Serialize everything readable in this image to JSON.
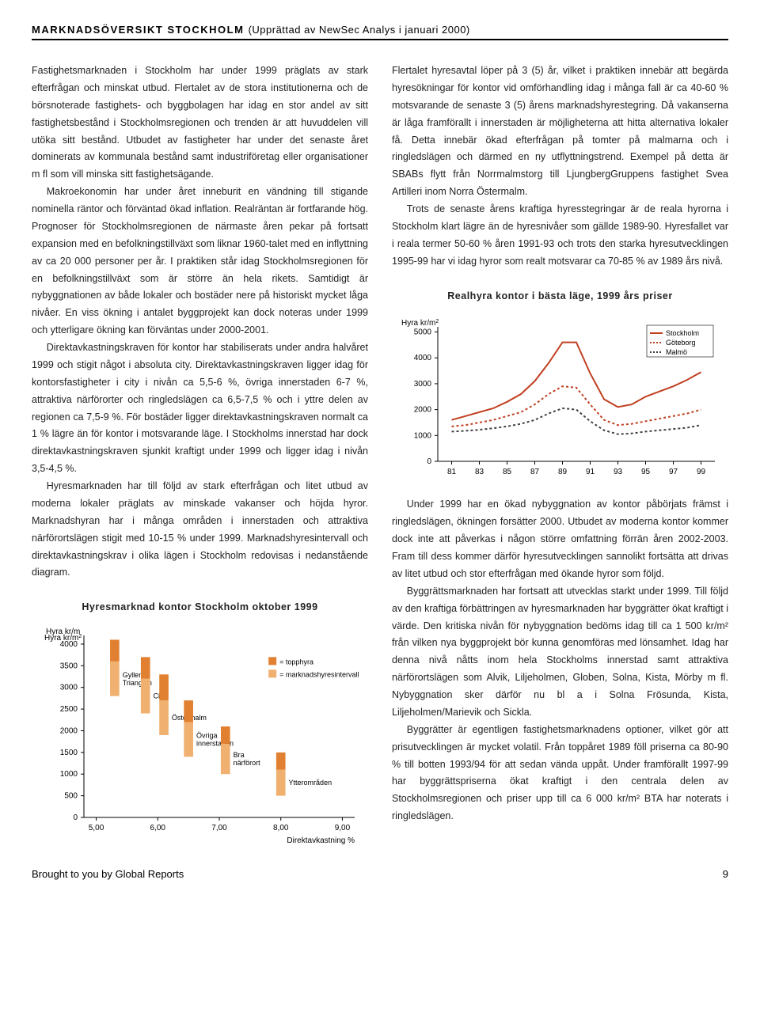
{
  "header": {
    "title": "MARKNADSÖVERSIKT STOCKHOLM",
    "subtitle": "(Upprättad av NewSec Analys i januari 2000)"
  },
  "left_paragraphs": [
    "Fastighetsmarknaden i Stockholm har under 1999 präglats av stark efterfrågan och minskat utbud. Flertalet av de stora institutionerna och de börsnoterade fastighets- och byggbolagen har idag en stor andel av sitt fastighetsbestånd i Stockholmsregionen och trenden är att huvuddelen vill utöka sitt bestånd. Utbudet av fastigheter har under det senaste året dominerats av kommunala bestånd samt industriföretag eller organisationer m fl som vill minska sitt fastighetsägande.",
    "Makroekonomin har under året inneburit en vändning till stigande nominella räntor och förväntad ökad inflation. Realräntan är fortfarande hög. Prognoser för Stockholmsregionen de närmaste åren pekar på fortsatt expansion med en befolkningstillväxt som liknar 1960-talet med en inflyttning av ca 20 000 personer per år. I praktiken står idag Stockholmsregionen för en befolkningstillväxt som är större än hela rikets. Samtidigt är nybyggnationen av både lokaler och bostäder nere på historiskt mycket låga nivåer. En viss ökning i antalet byggprojekt kan dock noteras under 1999 och ytterligare ökning kan förväntas under 2000-2001.",
    "Direktavkastningskraven för kontor har stabiliserats under andra halvåret 1999 och stigit något i absoluta city. Direktavkastningskraven ligger idag för kontorsfastigheter i city i nivån ca 5,5-6 %, övriga innerstaden 6-7 %, attraktiva närförorter och ringledslägen ca 6,5-7,5 % och i yttre delen av regionen ca 7,5-9 %. För bostäder ligger direktavkastningskraven normalt ca 1 % lägre än för kontor i motsvarande läge. I Stockholms innerstad har dock direktavkastningskraven sjunkit kraftigt under 1999 och ligger idag i nivån 3,5-4,5 %.",
    "Hyresmarknaden har till följd av stark efterfrågan och litet utbud av moderna lokaler präglats av minskade vakanser och höjda hyror. Marknadshyran har i många områden i innerstaden och attraktiva närförortslägen stigit med 10-15 % under 1999. Marknadshyresintervall och direktavkastningskrav i olika lägen i Stockholm redovisas i nedanstående diagram."
  ],
  "right_paragraphs_top": [
    "Flertalet hyresavtal löper på 3 (5) år, vilket i praktiken innebär att begärda hyresökningar för kontor vid omförhandling idag i många fall är ca 40-60 % motsvarande de senaste 3 (5) årens marknadshyrestegring. Då vakanserna är låga framförallt i innerstaden är möjligheterna att hitta alternativa lokaler få. Detta innebär ökad efterfrågan på tomter på malmarna och i ringledslägen och därmed en ny utflyttningstrend. Exempel på detta är SBABs flytt från Norrmalmstorg till LjungbergGruppens fastighet Svea Artilleri inom Norra Östermalm.",
    "Trots de senaste årens kraftiga hyresstegringar är de reala hyrorna i Stockholm klart lägre än de hyresnivåer som gällde 1989-90. Hyresfallet var i reala termer 50-60 % åren 1991-93 och trots den starka hyresutvecklingen 1995-99 har vi idag hyror som realt motsvarar ca 70-85 % av 1989 års nivå."
  ],
  "right_paragraphs_bottom": [
    "Under 1999 har en ökad nybyggnation av kontor påbörjats främst i ringledslägen, ökningen forsätter 2000. Utbudet av moderna kontor kommer dock inte att påverkas i någon större omfattning förrän åren 2002-2003. Fram till dess kommer därför hyresutvecklingen sannolikt fortsätta att drivas av litet utbud och stor efterfrågan med ökande hyror som följd.",
    "Byggrättsmarknaden har fortsatt att utvecklas starkt under 1999. Till följd av den kraftiga förbättringen av hyresmarknaden har byggrätter ökat kraftigt i värde. Den kritiska nivån för nybyggnation bedöms idag till ca 1 500 kr/m² från vilken nya byggprojekt bör kunna genomföras med lönsamhet. Idag har denna nivå nåtts inom hela Stockholms innerstad samt attraktiva närförortslägen som Alvik, Liljeholmen, Globen, Solna, Kista, Mörby m fl. Nybyggnation sker därför nu bl a i Solna Frösunda, Kista, Liljeholmen/Marievik och Sickla.",
    "Byggrätter är egentligen fastighetsmarknadens optioner, vilket gör att prisutvecklingen är mycket volatil. Från toppåret 1989 föll priserna ca 80-90 % till botten 1993/94 för att sedan vända uppåt. Under framförallt 1997-99 har byggrättspriserna ökat kraftigt i den centrala delen av Stockholmsregionen och priser upp till ca 6 000 kr/m² BTA har noterats i ringledslägen."
  ],
  "chart1": {
    "title": "Hyresmarknad kontor Stockholm oktober 1999",
    "ylabel": "Hyra kr/m²",
    "y_ticks": [
      0,
      500,
      1000,
      1500,
      2000,
      2500,
      3000,
      3500,
      4000
    ],
    "x_ticks": [
      "5,00",
      "6,00",
      "7,00",
      "8,00",
      "9,00"
    ],
    "xlabel": "Direktavkastning %",
    "legend": [
      {
        "color": "#e08030",
        "label": "= topphyra"
      },
      {
        "color": "#f0b070",
        "label": "= marknadshyresintervall"
      }
    ],
    "bar_labels": [
      "Gyllene Triangeln",
      "City",
      "Östermalm",
      "Övriga innerstaden",
      "Bra närförort",
      "Ytterområden"
    ],
    "bars": [
      {
        "x": 5.3,
        "low": 2800,
        "high": 3600,
        "top": 4100,
        "label": "Gyllene Triangeln"
      },
      {
        "x": 5.8,
        "low": 2400,
        "high": 3200,
        "top": 3700,
        "label": "City"
      },
      {
        "x": 6.1,
        "low": 1900,
        "high": 2700,
        "top": 3300,
        "label": "Östermalm"
      },
      {
        "x": 6.5,
        "low": 1400,
        "high": 2200,
        "top": 2700,
        "label": "Övriga innerstaden"
      },
      {
        "x": 7.1,
        "low": 1000,
        "high": 1700,
        "top": 2100,
        "label": "Bra närförort"
      },
      {
        "x": 8.0,
        "low": 500,
        "high": 1100,
        "top": 1500,
        "label": "Ytterområden"
      }
    ],
    "bar_width": 0.15,
    "colors": {
      "top": "#e08030",
      "range": "#f0b070",
      "axis": "#000"
    },
    "ylim": [
      0,
      4200
    ],
    "xlim": [
      4.8,
      9.2
    ]
  },
  "chart2": {
    "title": "Realhyra kontor i bästa läge, 1999 års priser",
    "ylabel": "Hyra kr/m²",
    "y_ticks": [
      0,
      1000,
      2000,
      3000,
      4000,
      5000
    ],
    "x_ticks": [
      81,
      83,
      85,
      87,
      89,
      91,
      93,
      95,
      97,
      99
    ],
    "ylim": [
      0,
      5200
    ],
    "xlim": [
      80,
      100
    ],
    "legend": [
      {
        "label": "Stockholm",
        "color": "#c04020",
        "style": "solid"
      },
      {
        "label": "Göteborg",
        "color": "#c04020",
        "style": "dotted"
      },
      {
        "label": "Malmö",
        "color": "#404040",
        "style": "dotted"
      }
    ],
    "series": [
      {
        "name": "Stockholm",
        "color": "#c04020",
        "style": "solid",
        "width": 2,
        "points": [
          [
            81,
            1600
          ],
          [
            82,
            1750
          ],
          [
            83,
            1900
          ],
          [
            84,
            2050
          ],
          [
            85,
            2300
          ],
          [
            86,
            2600
          ],
          [
            87,
            3100
          ],
          [
            88,
            3800
          ],
          [
            89,
            4600
          ],
          [
            90,
            4600
          ],
          [
            91,
            3400
          ],
          [
            92,
            2400
          ],
          [
            93,
            2100
          ],
          [
            94,
            2200
          ],
          [
            95,
            2500
          ],
          [
            96,
            2700
          ],
          [
            97,
            2900
          ],
          [
            98,
            3150
          ],
          [
            99,
            3450
          ]
        ]
      },
      {
        "name": "Göteborg",
        "color": "#c04020",
        "style": "dotted",
        "width": 2,
        "points": [
          [
            81,
            1350
          ],
          [
            82,
            1400
          ],
          [
            83,
            1500
          ],
          [
            84,
            1600
          ],
          [
            85,
            1750
          ],
          [
            86,
            1900
          ],
          [
            87,
            2200
          ],
          [
            88,
            2600
          ],
          [
            89,
            2900
          ],
          [
            90,
            2850
          ],
          [
            91,
            2200
          ],
          [
            92,
            1600
          ],
          [
            93,
            1400
          ],
          [
            94,
            1450
          ],
          [
            95,
            1550
          ],
          [
            96,
            1650
          ],
          [
            97,
            1750
          ],
          [
            98,
            1850
          ],
          [
            99,
            2000
          ]
        ]
      },
      {
        "name": "Malmö",
        "color": "#404040",
        "style": "dotted",
        "width": 2,
        "points": [
          [
            81,
            1150
          ],
          [
            82,
            1180
          ],
          [
            83,
            1220
          ],
          [
            84,
            1280
          ],
          [
            85,
            1350
          ],
          [
            86,
            1450
          ],
          [
            87,
            1600
          ],
          [
            88,
            1850
          ],
          [
            89,
            2050
          ],
          [
            90,
            2000
          ],
          [
            91,
            1550
          ],
          [
            92,
            1200
          ],
          [
            93,
            1050
          ],
          [
            94,
            1080
          ],
          [
            95,
            1150
          ],
          [
            96,
            1200
          ],
          [
            97,
            1250
          ],
          [
            98,
            1300
          ],
          [
            99,
            1400
          ]
        ]
      }
    ]
  },
  "footer": {
    "left": "Brought to you by Global Reports",
    "page": "9"
  }
}
